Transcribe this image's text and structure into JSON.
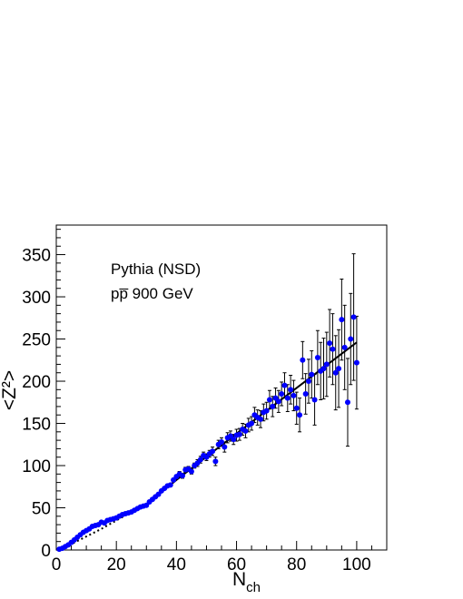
{
  "chart_data": {
    "type": "scatter",
    "annotations": [
      "Pythia (NSD)",
      "pp̅ 900 GeV"
    ],
    "xlabel_main": "N",
    "xlabel_sub": "ch",
    "ylabel": "<Z²>",
    "xlim": [
      0,
      110
    ],
    "ylim": [
      0,
      385
    ],
    "x_ticks": [
      0,
      20,
      40,
      60,
      80,
      100
    ],
    "y_ticks": [
      0,
      50,
      100,
      150,
      200,
      250,
      300,
      350
    ],
    "grid": false,
    "colors": {
      "points": "#0000ff",
      "fit": "#000000",
      "errorbars": "#000000"
    },
    "series": [
      {
        "points": [
          {
            "x": 1,
            "y": 1,
            "err": 0
          },
          {
            "x": 2,
            "y": 2,
            "err": 0
          },
          {
            "x": 3,
            "y": 4,
            "err": 0
          },
          {
            "x": 4,
            "y": 6,
            "err": 0
          },
          {
            "x": 5,
            "y": 9,
            "err": 0
          },
          {
            "x": 6,
            "y": 12,
            "err": 0
          },
          {
            "x": 7,
            "y": 15,
            "err": 0
          },
          {
            "x": 8,
            "y": 18,
            "err": 0
          },
          {
            "x": 9,
            "y": 21,
            "err": 0
          },
          {
            "x": 10,
            "y": 23,
            "err": 0
          },
          {
            "x": 11,
            "y": 25,
            "err": 0
          },
          {
            "x": 12,
            "y": 28,
            "err": 0
          },
          {
            "x": 13,
            "y": 29,
            "err": 0
          },
          {
            "x": 14,
            "y": 30,
            "err": 0
          },
          {
            "x": 15,
            "y": 33,
            "err": 0
          },
          {
            "x": 16,
            "y": 32,
            "err": 0
          },
          {
            "x": 17,
            "y": 35,
            "err": 0
          },
          {
            "x": 18,
            "y": 36,
            "err": 0
          },
          {
            "x": 19,
            "y": 37,
            "err": 0
          },
          {
            "x": 20,
            "y": 38,
            "err": 0
          },
          {
            "x": 21,
            "y": 40,
            "err": 0
          },
          {
            "x": 22,
            "y": 42,
            "err": 0
          },
          {
            "x": 23,
            "y": 43,
            "err": 0
          },
          {
            "x": 24,
            "y": 44,
            "err": 0
          },
          {
            "x": 25,
            "y": 45,
            "err": 0
          },
          {
            "x": 26,
            "y": 47,
            "err": 0
          },
          {
            "x": 27,
            "y": 49,
            "err": 0
          },
          {
            "x": 28,
            "y": 51,
            "err": 0
          },
          {
            "x": 29,
            "y": 52,
            "err": 0
          },
          {
            "x": 30,
            "y": 53,
            "err": 0
          },
          {
            "x": 31,
            "y": 57,
            "err": 0
          },
          {
            "x": 32,
            "y": 60,
            "err": 0
          },
          {
            "x": 33,
            "y": 63,
            "err": 0
          },
          {
            "x": 34,
            "y": 66,
            "err": 0
          },
          {
            "x": 35,
            "y": 70,
            "err": 0
          },
          {
            "x": 36,
            "y": 73,
            "err": 0
          },
          {
            "x": 37,
            "y": 76,
            "err": 0
          },
          {
            "x": 38,
            "y": 77,
            "err": 0
          },
          {
            "x": 39,
            "y": 83,
            "err": 2
          },
          {
            "x": 40,
            "y": 87,
            "err": 2
          },
          {
            "x": 41,
            "y": 90,
            "err": 3
          },
          {
            "x": 42,
            "y": 88,
            "err": 3
          },
          {
            "x": 43,
            "y": 95,
            "err": 3
          },
          {
            "x": 44,
            "y": 96,
            "err": 3
          },
          {
            "x": 45,
            "y": 93,
            "err": 3
          },
          {
            "x": 46,
            "y": 100,
            "err": 3
          },
          {
            "x": 47,
            "y": 103,
            "err": 4
          },
          {
            "x": 48,
            "y": 107,
            "err": 4
          },
          {
            "x": 49,
            "y": 112,
            "err": 4
          },
          {
            "x": 50,
            "y": 110,
            "err": 4
          },
          {
            "x": 51,
            "y": 114,
            "err": 4
          },
          {
            "x": 52,
            "y": 117,
            "err": 5
          },
          {
            "x": 53,
            "y": 105,
            "err": 5
          },
          {
            "x": 54,
            "y": 125,
            "err": 5
          },
          {
            "x": 55,
            "y": 128,
            "err": 5
          },
          {
            "x": 56,
            "y": 122,
            "err": 6
          },
          {
            "x": 57,
            "y": 133,
            "err": 6
          },
          {
            "x": 58,
            "y": 135,
            "err": 6
          },
          {
            "x": 59,
            "y": 131,
            "err": 6
          },
          {
            "x": 60,
            "y": 136,
            "err": 7
          },
          {
            "x": 61,
            "y": 137,
            "err": 7
          },
          {
            "x": 62,
            "y": 143,
            "err": 7
          },
          {
            "x": 63,
            "y": 141,
            "err": 8
          },
          {
            "x": 64,
            "y": 148,
            "err": 8
          },
          {
            "x": 65,
            "y": 150,
            "err": 8
          },
          {
            "x": 66,
            "y": 160,
            "err": 9
          },
          {
            "x": 67,
            "y": 157,
            "err": 9
          },
          {
            "x": 68,
            "y": 155,
            "err": 10
          },
          {
            "x": 69,
            "y": 163,
            "err": 10
          },
          {
            "x": 70,
            "y": 165,
            "err": 10
          },
          {
            "x": 71,
            "y": 178,
            "err": 11
          },
          {
            "x": 72,
            "y": 170,
            "err": 12
          },
          {
            "x": 73,
            "y": 180,
            "err": 12
          },
          {
            "x": 74,
            "y": 176,
            "err": 13
          },
          {
            "x": 75,
            "y": 185,
            "err": 14
          },
          {
            "x": 76,
            "y": 195,
            "err": 15
          },
          {
            "x": 77,
            "y": 180,
            "err": 16
          },
          {
            "x": 78,
            "y": 190,
            "err": 17
          },
          {
            "x": 79,
            "y": 183,
            "err": 18
          },
          {
            "x": 80,
            "y": 168,
            "err": 19
          },
          {
            "x": 81,
            "y": 160,
            "err": 20
          },
          {
            "x": 82,
            "y": 225,
            "err": 22
          },
          {
            "x": 83,
            "y": 185,
            "err": 24
          },
          {
            "x": 84,
            "y": 200,
            "err": 26
          },
          {
            "x": 85,
            "y": 208,
            "err": 28
          },
          {
            "x": 86,
            "y": 178,
            "err": 30
          },
          {
            "x": 87,
            "y": 228,
            "err": 32
          },
          {
            "x": 88,
            "y": 212,
            "err": 34
          },
          {
            "x": 89,
            "y": 215,
            "err": 36
          },
          {
            "x": 90,
            "y": 220,
            "err": 38
          },
          {
            "x": 91,
            "y": 245,
            "err": 40
          },
          {
            "x": 92,
            "y": 238,
            "err": 42
          },
          {
            "x": 93,
            "y": 210,
            "err": 44
          },
          {
            "x": 94,
            "y": 215,
            "err": 46
          },
          {
            "x": 95,
            "y": 273,
            "err": 48
          },
          {
            "x": 96,
            "y": 240,
            "err": 50
          },
          {
            "x": 97,
            "y": 175,
            "err": 52
          },
          {
            "x": 98,
            "y": 250,
            "err": 54
          },
          {
            "x": 99,
            "y": 276,
            "err": 75
          },
          {
            "x": 100,
            "y": 222,
            "err": 55
          }
        ],
        "fit_solid": [
          [
            30,
            54
          ],
          [
            40,
            83
          ],
          [
            60,
            138
          ],
          [
            80,
            192
          ],
          [
            100,
            246
          ]
        ],
        "fit_dotted": [
          [
            0,
            0
          ],
          [
            5,
            7
          ],
          [
            10,
            16
          ],
          [
            15,
            25
          ],
          [
            20,
            35
          ],
          [
            25,
            45
          ],
          [
            30,
            54
          ]
        ]
      }
    ]
  }
}
